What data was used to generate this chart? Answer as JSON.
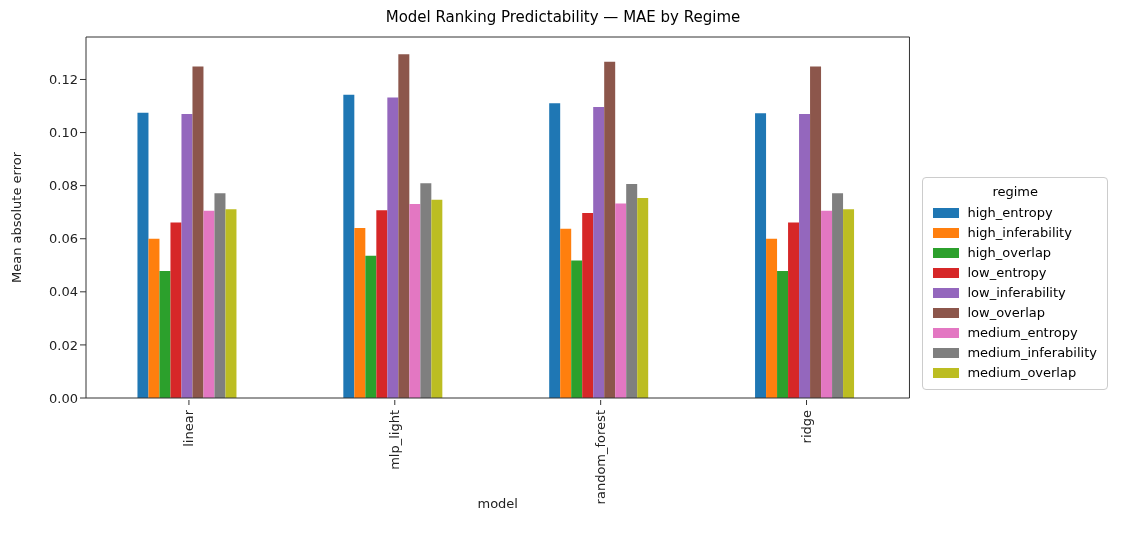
{
  "chart_data": {
    "type": "bar",
    "title": "Model Ranking Predictability — MAE by Regime",
    "xlabel": "model",
    "ylabel": "Mean absolute error",
    "legend_title": "regime",
    "categories": [
      "linear",
      "mlp_light",
      "random_forest",
      "ridge"
    ],
    "series": [
      {
        "name": "high_entropy",
        "color": "#1f77b4",
        "values": [
          0.1075,
          0.1142,
          0.111,
          0.1073
        ]
      },
      {
        "name": "high_inferability",
        "color": "#ff7f0e",
        "values": [
          0.06,
          0.064,
          0.0638,
          0.06
        ]
      },
      {
        "name": "high_overlap",
        "color": "#2ca02c",
        "values": [
          0.0478,
          0.0536,
          0.0518,
          0.0478
        ]
      },
      {
        "name": "low_entropy",
        "color": "#d62728",
        "values": [
          0.0661,
          0.0707,
          0.0697,
          0.0661
        ]
      },
      {
        "name": "low_inferability",
        "color": "#9467bd",
        "values": [
          0.107,
          0.1132,
          0.1096,
          0.107
        ]
      },
      {
        "name": "low_overlap",
        "color": "#8c564b",
        "values": [
          0.1249,
          0.1295,
          0.1267,
          0.1249
        ]
      },
      {
        "name": "medium_entropy",
        "color": "#e377c2",
        "values": [
          0.0705,
          0.0731,
          0.0733,
          0.0705
        ]
      },
      {
        "name": "medium_inferability",
        "color": "#7f7f7f",
        "values": [
          0.0771,
          0.0809,
          0.0806,
          0.0771
        ]
      },
      {
        "name": "medium_overlap",
        "color": "#bcbd22",
        "values": [
          0.0711,
          0.0747,
          0.0753,
          0.0711
        ]
      }
    ],
    "ylim": [
      0,
      0.136
    ],
    "yticks": [
      {
        "value": 0,
        "label": "0.00"
      },
      {
        "value": 0.02,
        "label": "0.02"
      },
      {
        "value": 0.04,
        "label": "0.04"
      },
      {
        "value": 0.06,
        "label": "0.06"
      },
      {
        "value": 0.08,
        "label": "0.08"
      },
      {
        "value": 0.1,
        "label": "0.10"
      },
      {
        "value": 0.12,
        "label": "0.12"
      }
    ],
    "legend": "right"
  }
}
